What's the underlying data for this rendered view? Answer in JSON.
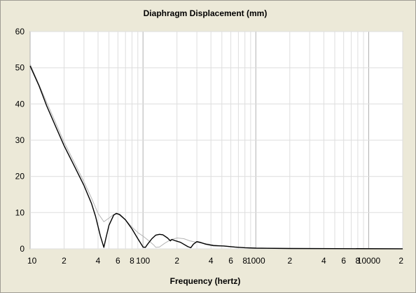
{
  "chart_data": {
    "type": "line",
    "title": "Diaphragm Displacement (mm)",
    "xlabel": "Frequency (hertz)",
    "ylabel": "",
    "x_scale": "log",
    "xlim": [
      10,
      20000
    ],
    "ylim": [
      0,
      60
    ],
    "grid": true,
    "legend": "none",
    "y_ticks": [
      "0",
      "10",
      "20",
      "30",
      "40",
      "50",
      "60"
    ],
    "x_ticks": [
      {
        "v": 10,
        "label": "10"
      },
      {
        "v": 20,
        "label": "2"
      },
      {
        "v": 40,
        "label": "4"
      },
      {
        "v": 60,
        "label": "6"
      },
      {
        "v": 80,
        "label": "8"
      },
      {
        "v": 100,
        "label": "100"
      },
      {
        "v": 200,
        "label": "2"
      },
      {
        "v": 400,
        "label": "4"
      },
      {
        "v": 600,
        "label": "6"
      },
      {
        "v": 800,
        "label": "8"
      },
      {
        "v": 1000,
        "label": "1000"
      },
      {
        "v": 2000,
        "label": "2"
      },
      {
        "v": 4000,
        "label": "4"
      },
      {
        "v": 6000,
        "label": "6"
      },
      {
        "v": 8000,
        "label": "8"
      },
      {
        "v": 10000,
        "label": "10000"
      },
      {
        "v": 20000,
        "label": "2"
      }
    ],
    "series": [
      {
        "color": "#000000",
        "points": [
          [
            10,
            50.5
          ],
          [
            12,
            45
          ],
          [
            14,
            39.5
          ],
          [
            17,
            33.5
          ],
          [
            20,
            28.5
          ],
          [
            25,
            22.5
          ],
          [
            30,
            17.5
          ],
          [
            35,
            12.5
          ],
          [
            38,
            9
          ],
          [
            42,
            3.5
          ],
          [
            45,
            0.4
          ],
          [
            47,
            3
          ],
          [
            50,
            6.5
          ],
          [
            55,
            9.3
          ],
          [
            58,
            9.8
          ],
          [
            62,
            9.5
          ],
          [
            70,
            8
          ],
          [
            80,
            5.5
          ],
          [
            90,
            2.8
          ],
          [
            100,
            0.5
          ],
          [
            105,
            0.4
          ],
          [
            110,
            1.3
          ],
          [
            120,
            2.8
          ],
          [
            130,
            3.8
          ],
          [
            140,
            4
          ],
          [
            150,
            3.9
          ],
          [
            165,
            3
          ],
          [
            175,
            2.2
          ],
          [
            180,
            2.6
          ],
          [
            195,
            2.2
          ],
          [
            215,
            1.8
          ],
          [
            250,
            0.6
          ],
          [
            265,
            0.3
          ],
          [
            280,
            1.3
          ],
          [
            300,
            2
          ],
          [
            320,
            1.8
          ],
          [
            360,
            1.3
          ],
          [
            420,
            0.9
          ],
          [
            520,
            0.8
          ],
          [
            650,
            0.5
          ],
          [
            800,
            0.3
          ],
          [
            1000,
            0.2
          ],
          [
            2000,
            0.1
          ],
          [
            5000,
            0.05
          ],
          [
            20000,
            0.02
          ]
        ]
      },
      {
        "color": "#b4b4b4",
        "points": [
          [
            10,
            51
          ],
          [
            14,
            40.5
          ],
          [
            20,
            29.5
          ],
          [
            30,
            18.5
          ],
          [
            35,
            14
          ],
          [
            40,
            9.8
          ],
          [
            45,
            7.5
          ],
          [
            50,
            8.5
          ],
          [
            55,
            9.5
          ],
          [
            60,
            9.6
          ],
          [
            70,
            8
          ],
          [
            80,
            6
          ],
          [
            90,
            4.5
          ],
          [
            100,
            3.5
          ],
          [
            110,
            2.5
          ],
          [
            125,
            1
          ],
          [
            130,
            0.4
          ],
          [
            140,
            0.5
          ],
          [
            155,
            1.5
          ],
          [
            175,
            2.5
          ],
          [
            200,
            3
          ],
          [
            230,
            2.8
          ],
          [
            260,
            2.2
          ],
          [
            300,
            1.8
          ],
          [
            400,
            1.2
          ],
          [
            500,
            0.8
          ],
          [
            700,
            0.4
          ],
          [
            1000,
            0.2
          ],
          [
            2000,
            0.1
          ],
          [
            20000,
            0.02
          ]
        ]
      }
    ]
  }
}
